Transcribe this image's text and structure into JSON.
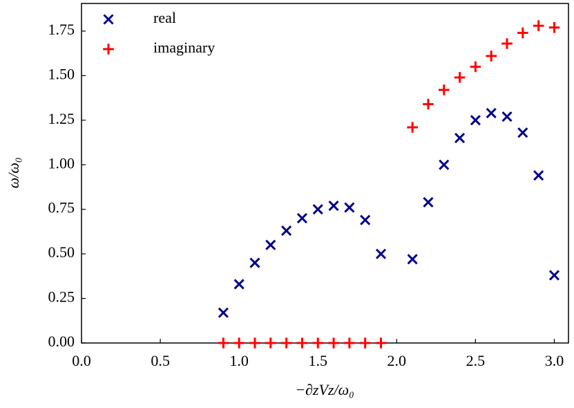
{
  "chart_data": {
    "type": "scatter",
    "x_label": "−∂zVz/ω₀",
    "y_label": "ω/ω₀",
    "x": [
      0.9,
      1.0,
      1.1,
      1.2,
      1.3,
      1.4,
      1.5,
      1.6,
      1.7,
      1.8,
      1.9,
      2.1,
      2.2,
      2.3,
      2.4,
      2.5,
      2.6,
      2.7,
      2.8,
      2.9,
      3.0
    ],
    "series": [
      {
        "name": "real",
        "color": "#00008b",
        "marker": "x",
        "values": [
          0.17,
          0.33,
          0.45,
          0.55,
          0.63,
          0.7,
          0.75,
          0.77,
          0.76,
          0.69,
          0.5,
          0.47,
          0.79,
          1.0,
          1.15,
          1.25,
          1.29,
          1.27,
          1.18,
          0.94,
          0.38
        ]
      },
      {
        "name": "imaginary",
        "color": "#ff0000",
        "marker": "+",
        "values": [
          0,
          0,
          0,
          0,
          0,
          0,
          0,
          0,
          0,
          0,
          0,
          1.21,
          1.34,
          1.42,
          1.49,
          1.55,
          1.61,
          1.68,
          1.74,
          1.78,
          1.77
        ]
      }
    ],
    "xlim": [
      0,
      3.09
    ],
    "ylim": [
      0,
      1.905
    ],
    "xticks": [
      {
        "value": 0,
        "label": "0.0"
      },
      {
        "value": 0.5,
        "label": "0.5"
      },
      {
        "value": 1,
        "label": "1.0"
      },
      {
        "value": 1.5,
        "label": "1.5"
      },
      {
        "value": 2,
        "label": "2.0"
      },
      {
        "value": 2.5,
        "label": "2.5"
      },
      {
        "value": 3,
        "label": "3.0"
      }
    ],
    "yticks": [
      {
        "value": 0,
        "label": "0.00"
      },
      {
        "value": 0.25,
        "label": "0.25"
      },
      {
        "value": 0.5,
        "label": "0.50"
      },
      {
        "value": 0.75,
        "label": "0.75"
      },
      {
        "value": 1,
        "label": "1.00"
      },
      {
        "value": 1.25,
        "label": "1.25"
      },
      {
        "value": 1.5,
        "label": "1.50"
      },
      {
        "value": 1.75,
        "label": "1.75"
      }
    ],
    "legend": "upper left",
    "grid": false
  }
}
